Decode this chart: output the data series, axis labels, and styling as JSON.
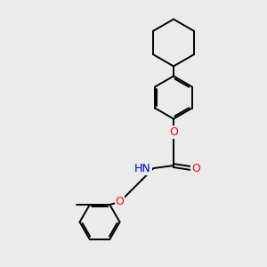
{
  "bg_color": "#ebebeb",
  "atom_colors": {
    "O": "#ff0000",
    "N": "#0000cd",
    "C": "#000000",
    "H": "#808080"
  },
  "bond_color": "#000000",
  "bond_lw": 1.4,
  "font_size_atom": 9,
  "figsize": [
    3.0,
    3.0
  ],
  "dpi": 100,
  "xlim": [
    0,
    10
  ],
  "ylim": [
    0,
    10
  ]
}
